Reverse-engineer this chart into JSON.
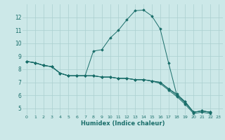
{
  "xlabel": "Humidex (Indice chaleur)",
  "background_color": "#cce8e8",
  "grid_color": "#aacfcf",
  "line_color": "#1a6e6a",
  "xlim": [
    -0.5,
    23.5
  ],
  "ylim": [
    4.5,
    13.0
  ],
  "yticks": [
    5,
    6,
    7,
    8,
    9,
    10,
    11,
    12
  ],
  "xticks": [
    0,
    1,
    2,
    3,
    4,
    5,
    6,
    7,
    8,
    9,
    10,
    11,
    12,
    13,
    14,
    15,
    16,
    17,
    18,
    19,
    20,
    21,
    22,
    23
  ],
  "series": [
    [
      8.6,
      8.5,
      8.3,
      8.2,
      7.7,
      7.5,
      7.5,
      7.5,
      9.4,
      9.5,
      10.4,
      11.0,
      11.8,
      12.5,
      12.55,
      12.1,
      11.1,
      8.5,
      6.0,
      5.5,
      4.7,
      4.8,
      4.7
    ],
    [
      8.6,
      8.5,
      8.3,
      8.2,
      7.7,
      7.5,
      7.5,
      7.5,
      7.5,
      7.4,
      7.4,
      7.3,
      7.3,
      7.2,
      7.2,
      7.1,
      7.0,
      6.5,
      6.1,
      5.5,
      4.7,
      4.8,
      4.7
    ],
    [
      8.6,
      8.5,
      8.3,
      8.2,
      7.7,
      7.5,
      7.5,
      7.5,
      7.5,
      7.4,
      7.4,
      7.3,
      7.3,
      7.2,
      7.2,
      7.1,
      7.0,
      6.5,
      6.0,
      5.4,
      4.7,
      4.8,
      4.7
    ],
    [
      8.6,
      8.5,
      8.3,
      8.2,
      7.7,
      7.5,
      7.5,
      7.5,
      7.5,
      7.4,
      7.4,
      7.3,
      7.3,
      7.2,
      7.2,
      7.1,
      6.9,
      6.4,
      5.9,
      5.3,
      4.6,
      4.7,
      4.6
    ]
  ]
}
